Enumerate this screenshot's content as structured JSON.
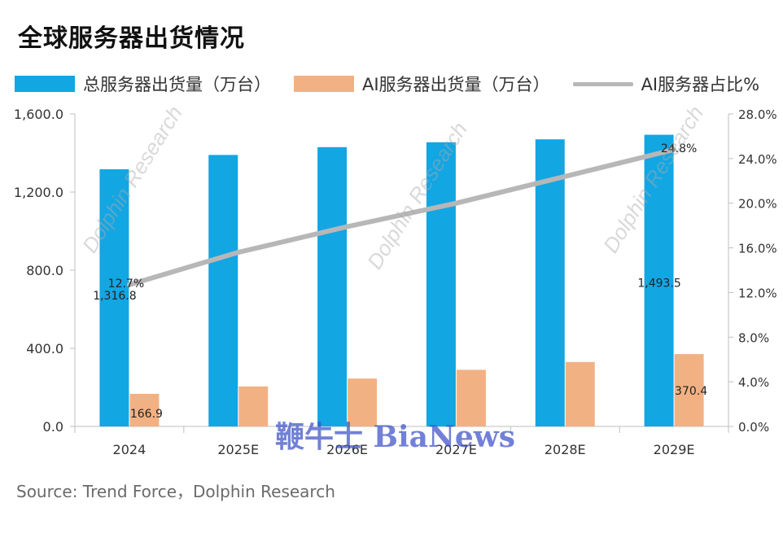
{
  "title": "全球服务器出货情况",
  "legend": {
    "total_label": "总服务器出货量（万台）",
    "ai_label": "AI服务器出货量（万台）",
    "share_label": "AI服务器占比%"
  },
  "source": "Source: Trend Force，Dolphin Research",
  "watermark": {
    "brand": "鞭牛士 BiaNews",
    "faint": "Dolphin Research"
  },
  "colors": {
    "total": "#12a6e3",
    "ai": "#f2b183",
    "share_line": "#b7b7b7",
    "axis": "#bfbfbf",
    "grid": "#e3e3e3"
  },
  "chart_data": {
    "type": "bar",
    "categories": [
      "2024",
      "2025E",
      "2026E",
      "2027E",
      "2028E",
      "2029E"
    ],
    "series": [
      {
        "name": "总服务器出货量（万台）",
        "axis": "left",
        "values": [
          1316.8,
          1390,
          1430,
          1455,
          1470,
          1493.5
        ]
      },
      {
        "name": "AI服务器出货量（万台）",
        "axis": "left",
        "values": [
          166.9,
          205,
          245,
          290,
          330,
          370.4
        ]
      },
      {
        "name": "AI服务器占比%",
        "type": "line",
        "axis": "right",
        "values": [
          12.7,
          15.6,
          17.9,
          20.0,
          22.4,
          24.8
        ]
      }
    ],
    "data_labels": [
      {
        "series": 0,
        "index": 0,
        "text": "1,316.8"
      },
      {
        "series": 0,
        "index": 5,
        "text": "1,493.5"
      },
      {
        "series": 1,
        "index": 0,
        "text": "166.9"
      },
      {
        "series": 1,
        "index": 5,
        "text": "370.4"
      },
      {
        "series": 2,
        "index": 0,
        "text": "12.7%"
      },
      {
        "series": 2,
        "index": 5,
        "text": "24.8%"
      }
    ],
    "y_left": {
      "ticks": [
        "0.0",
        "400.0",
        "800.0",
        "1,200.0",
        "1,600.0"
      ],
      "tick_values": [
        0,
        400,
        800,
        1200,
        1600
      ],
      "ylim": [
        0,
        1600
      ]
    },
    "y_right": {
      "ticks": [
        "0.0%",
        "4.0%",
        "8.0%",
        "12.0%",
        "16.0%",
        "20.0%",
        "24.0%",
        "28.0%"
      ],
      "tick_values": [
        0,
        4,
        8,
        12,
        16,
        20,
        24,
        28
      ],
      "ylim": [
        0,
        28
      ]
    },
    "grid": false,
    "legend_position": "top"
  }
}
